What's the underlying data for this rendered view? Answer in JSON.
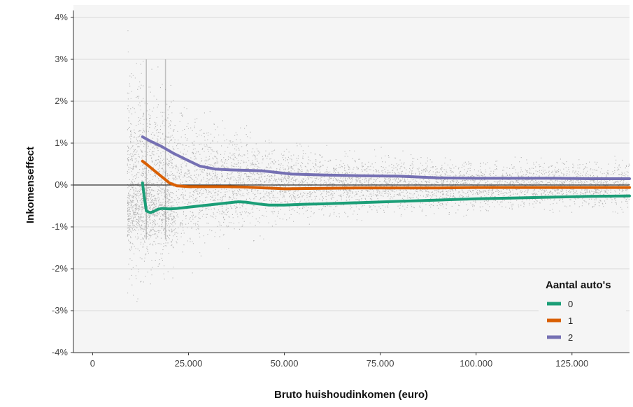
{
  "chart_data": {
    "type": "line",
    "xlabel": "Bruto huishoudinkomen (euro)",
    "ylabel": "Inkomenseffect",
    "xlim": [
      -5000,
      140000
    ],
    "ylim": [
      -4,
      4
    ],
    "x_ticks": [
      0,
      25000,
      50000,
      75000,
      100000,
      125000
    ],
    "x_tick_labels": [
      "0",
      "25.000",
      "50.000",
      "75.000",
      "100.000",
      "125.000"
    ],
    "y_ticks": [
      -4,
      -3,
      -2,
      -1,
      0,
      1,
      2,
      3,
      4
    ],
    "y_tick_labels": [
      "-4%",
      "-3%",
      "-2%",
      "-1%",
      "0%",
      "1%",
      "2%",
      "3%",
      "4%"
    ],
    "grid": true,
    "background_scatter_color": "#9e9e9e",
    "legend": {
      "title": "Aantal auto's",
      "position": "bottom-right"
    },
    "series": [
      {
        "name": "0",
        "color": "#1b9e77",
        "x": [
          13000,
          13500,
          14000,
          15000,
          16000,
          17000,
          18000,
          20000,
          22000,
          25000,
          30000,
          35000,
          38000,
          40000,
          43000,
          46000,
          50000,
          55000,
          60000,
          70000,
          80000,
          90000,
          100000,
          110000,
          120000,
          130000,
          140000
        ],
        "y": [
          0.05,
          -0.3,
          -0.62,
          -0.66,
          -0.63,
          -0.58,
          -0.56,
          -0.57,
          -0.56,
          -0.53,
          -0.48,
          -0.43,
          -0.4,
          -0.41,
          -0.45,
          -0.48,
          -0.48,
          -0.46,
          -0.45,
          -0.42,
          -0.39,
          -0.36,
          -0.33,
          -0.31,
          -0.29,
          -0.27,
          -0.26
        ]
      },
      {
        "name": "1",
        "color": "#d95f02",
        "x": [
          13000,
          14000,
          16000,
          18000,
          20000,
          22000,
          25000,
          30000,
          35000,
          40000,
          45000,
          50000,
          60000,
          70000,
          80000,
          90000,
          100000,
          110000,
          120000,
          130000,
          140000
        ],
        "y": [
          0.57,
          0.5,
          0.35,
          0.2,
          0.05,
          -0.02,
          -0.04,
          -0.04,
          -0.04,
          -0.05,
          -0.07,
          -0.09,
          -0.08,
          -0.07,
          -0.07,
          -0.07,
          -0.06,
          -0.06,
          -0.06,
          -0.06,
          -0.06
        ]
      },
      {
        "name": "2",
        "color": "#7570b3",
        "x": [
          13000,
          15000,
          18000,
          21000,
          25000,
          28000,
          32000,
          36000,
          40000,
          44000,
          48000,
          52000,
          60000,
          70000,
          80000,
          90000,
          100000,
          110000,
          120000,
          130000,
          140000
        ],
        "y": [
          1.15,
          1.05,
          0.92,
          0.76,
          0.58,
          0.45,
          0.38,
          0.36,
          0.35,
          0.34,
          0.3,
          0.26,
          0.24,
          0.22,
          0.21,
          0.17,
          0.16,
          0.16,
          0.16,
          0.15,
          0.15
        ]
      }
    ]
  }
}
